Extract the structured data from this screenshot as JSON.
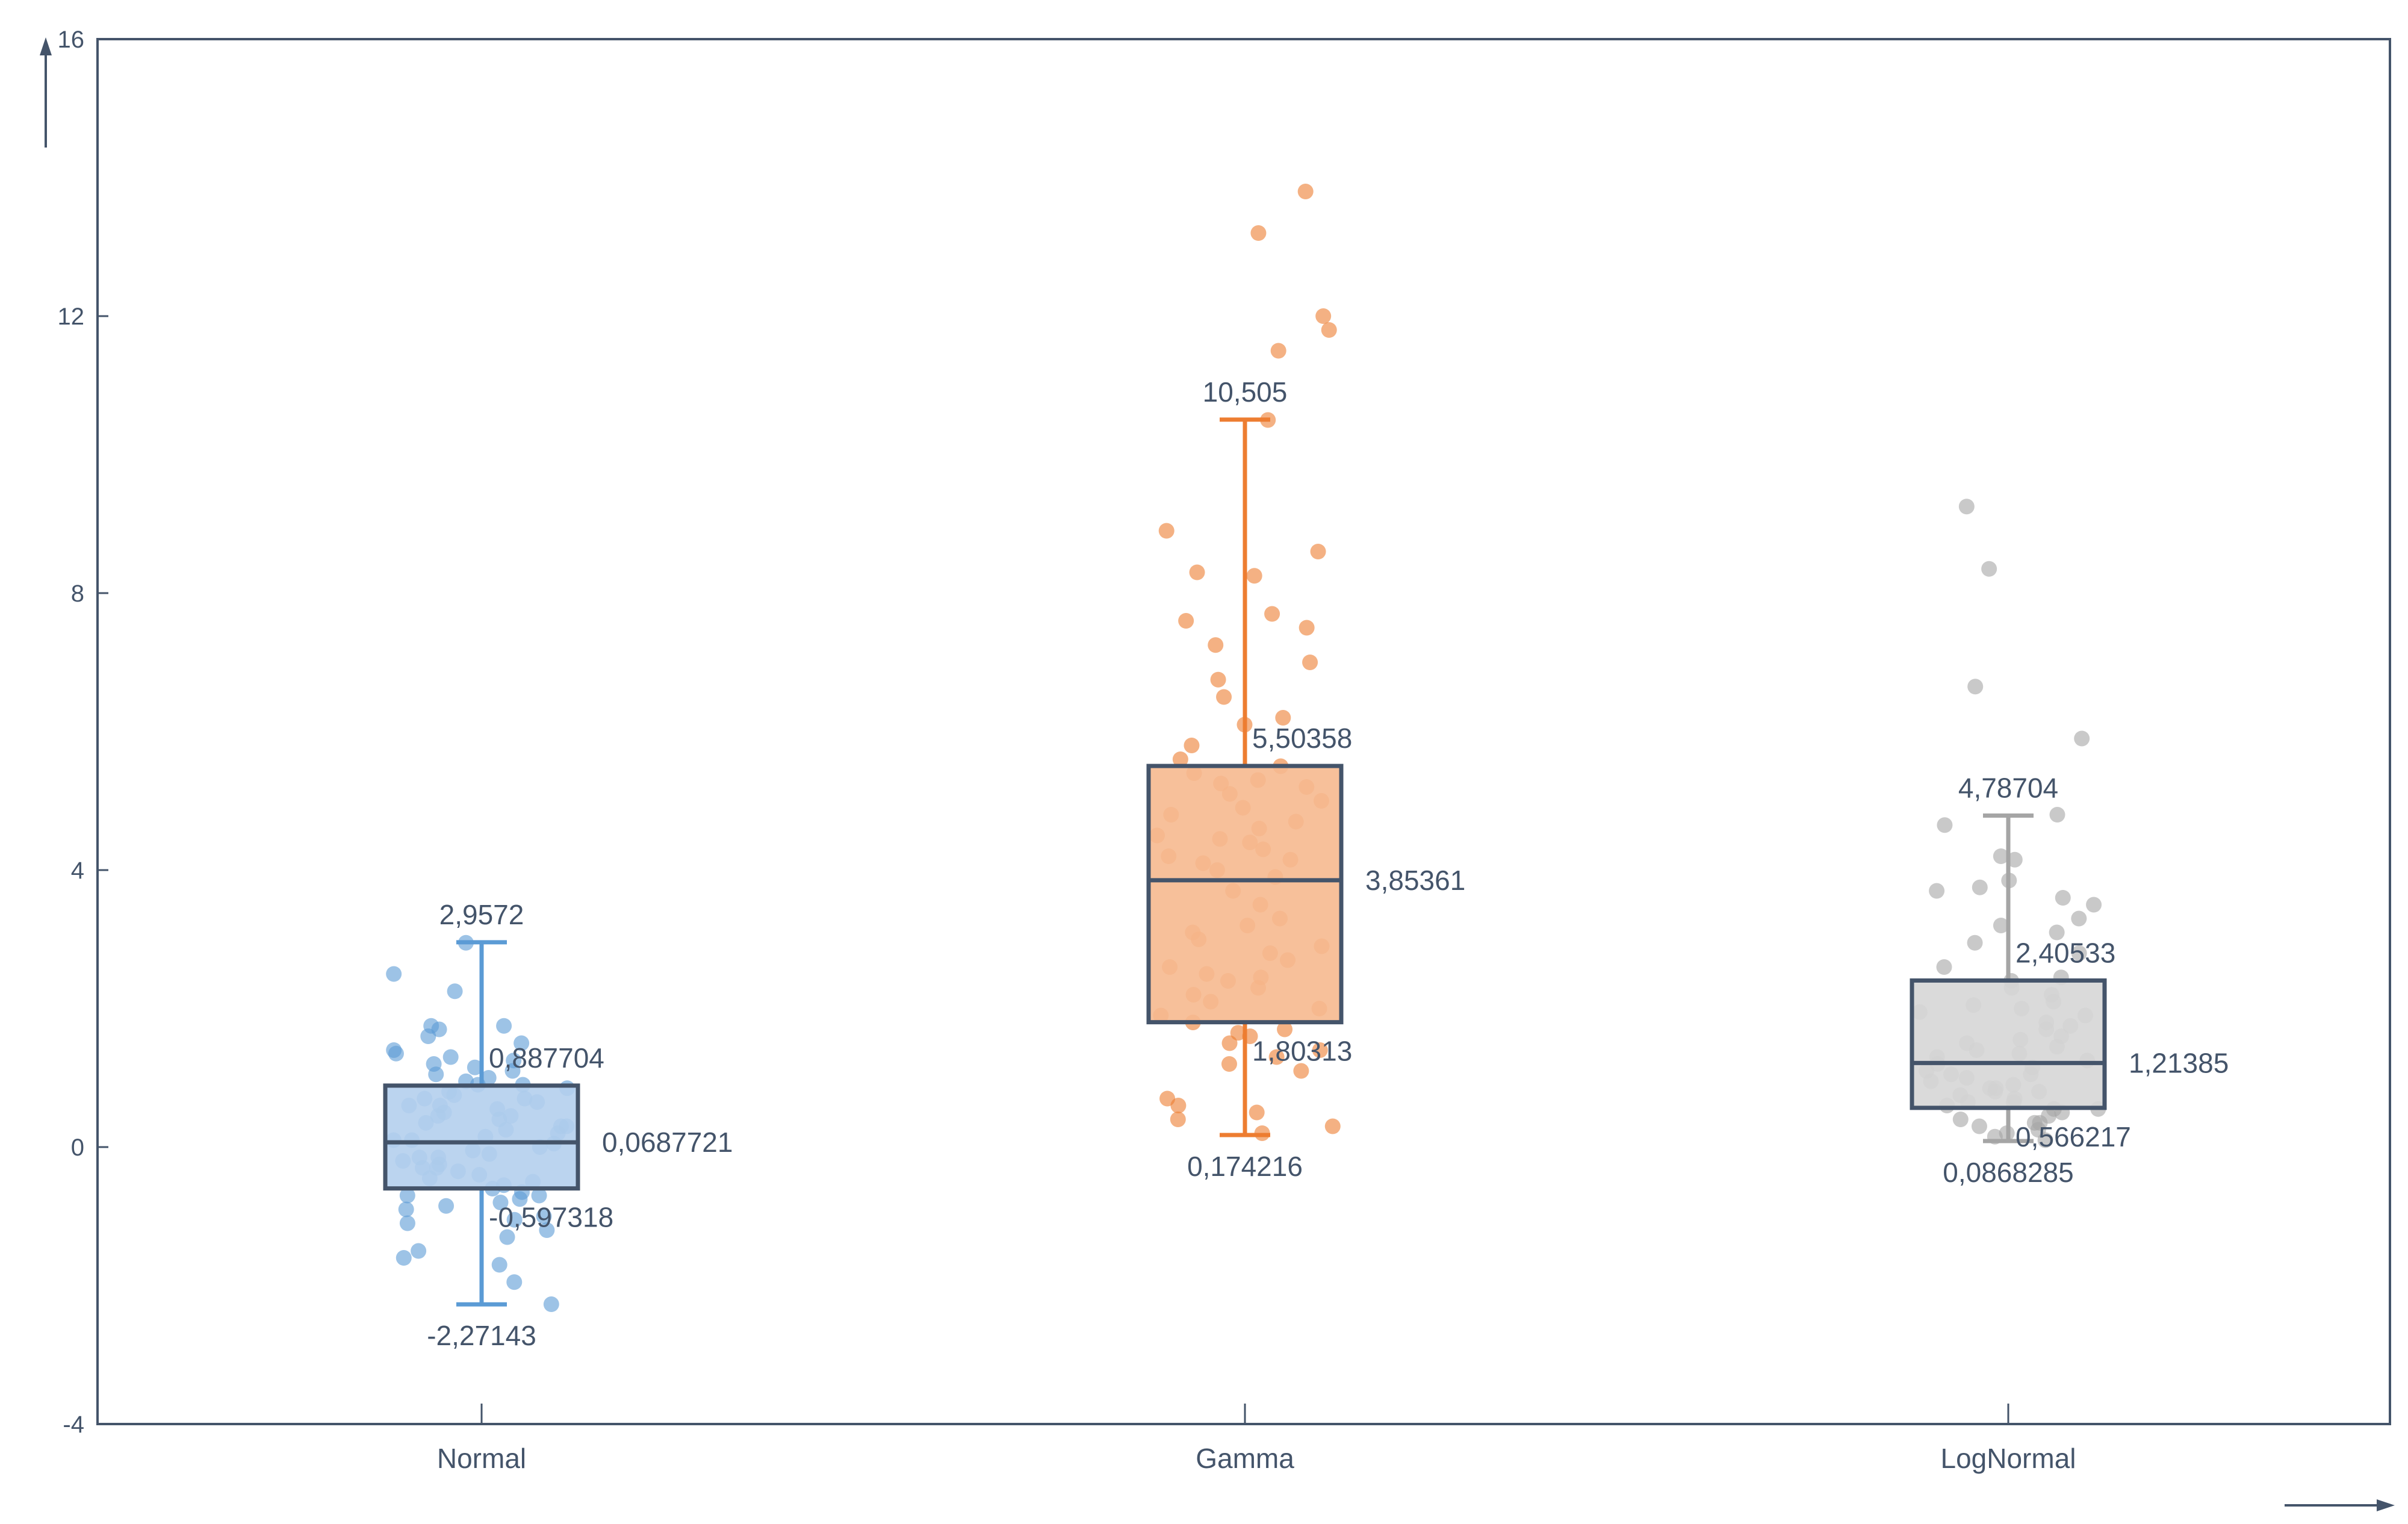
{
  "chart_data": {
    "type": "box",
    "title": "",
    "xlabel": "",
    "ylabel": "",
    "ylim": [
      -4,
      16
    ],
    "yticks": [
      -4,
      0,
      4,
      8,
      12,
      16
    ],
    "ytick_labels": [
      "-4",
      "0",
      "4",
      "8",
      "12",
      "16"
    ],
    "grid": false,
    "legend": "none",
    "categories": [
      "Normal",
      "Gamma",
      "LogNormal"
    ],
    "series": [
      {
        "category": "Normal",
        "color": "#5b9bd5",
        "fill": "#b4cfed",
        "whisker_high": 2.9572,
        "q3": 0.887704,
        "median": 0.0687721,
        "q1": -0.597318,
        "whisker_low": -2.27143,
        "labels": {
          "whisker_high": "2,9572",
          "q3": "0,887704",
          "median": "0,0687721",
          "q1": "-0,597318",
          "whisker_low": "-2,27143"
        },
        "points": [
          2.95,
          2.5,
          2.25,
          1.75,
          1.7,
          1.6,
          1.5,
          1.4,
          1.35,
          1.3,
          1.25,
          1.2,
          1.15,
          1.1,
          1.05,
          1.0,
          0.95,
          0.9,
          0.85,
          0.8,
          0.75,
          0.7,
          0.65,
          0.6,
          0.55,
          0.5,
          0.45,
          0.4,
          0.35,
          0.3,
          0.25,
          0.2,
          0.15,
          0.1,
          0.05,
          0.0,
          -0.05,
          -0.1,
          -0.15,
          -0.2,
          -0.25,
          -0.3,
          -0.35,
          -0.4,
          -0.45,
          -0.5,
          -0.55,
          -0.6,
          -0.65,
          -0.7,
          -0.75,
          -0.8,
          -0.85,
          -0.9,
          -1.0,
          -1.05,
          -1.1,
          -1.2,
          -1.3,
          -1.5,
          -1.6,
          -1.7,
          -1.95,
          -2.27,
          0.3,
          0.6,
          0.9,
          -0.3,
          -0.7,
          0.1,
          1.75,
          0.45,
          -0.15,
          0.7
        ]
      },
      {
        "category": "Gamma",
        "color": "#ed7d31",
        "fill": "#f6b98f",
        "whisker_high": 10.505,
        "q3": 5.50358,
        "median": 3.85361,
        "q1": 1.80313,
        "whisker_low": 0.174216,
        "labels": {
          "whisker_high": "10,505",
          "q3": "5,50358",
          "median": "3,85361",
          "q1": "1,80313",
          "whisker_low": "0,174216"
        },
        "points": [
          13.8,
          13.2,
          12.0,
          11.8,
          11.5,
          10.5,
          8.9,
          8.6,
          8.3,
          8.25,
          7.7,
          7.6,
          7.5,
          7.25,
          7.0,
          6.75,
          6.5,
          6.2,
          6.1,
          5.8,
          5.6,
          5.5,
          5.4,
          5.3,
          5.25,
          5.2,
          5.1,
          5.0,
          4.9,
          4.8,
          4.7,
          4.6,
          4.5,
          4.45,
          4.4,
          4.3,
          4.2,
          4.15,
          4.1,
          4.0,
          3.9,
          3.7,
          3.5,
          3.3,
          3.2,
          3.1,
          3.0,
          2.9,
          2.8,
          2.7,
          2.6,
          2.5,
          2.45,
          2.4,
          2.3,
          2.2,
          2.1,
          2.0,
          1.9,
          1.8,
          1.7,
          1.65,
          1.6,
          1.5,
          1.4,
          1.3,
          1.2,
          1.1,
          0.7,
          0.6,
          0.5,
          0.4,
          0.3,
          0.2
        ]
      },
      {
        "category": "LogNormal",
        "color": "#a5a5a5",
        "fill": "#d6d6d6",
        "whisker_high": 4.78704,
        "q3": 2.40533,
        "median": 1.21385,
        "q1": 0.566217,
        "whisker_low": 0.0868285,
        "labels": {
          "whisker_high": "4,78704",
          "q3": "2,40533",
          "median": "1,21385",
          "q1": "0,566217",
          "whisker_low": "0,0868285"
        },
        "points": [
          9.25,
          8.35,
          6.65,
          5.9,
          4.8,
          4.65,
          4.2,
          4.15,
          3.85,
          3.75,
          3.7,
          3.6,
          3.5,
          3.3,
          3.2,
          3.1,
          2.95,
          2.8,
          2.6,
          2.45,
          2.4,
          2.3,
          2.2,
          2.1,
          2.05,
          2.0,
          1.95,
          1.9,
          1.8,
          1.7,
          1.6,
          1.55,
          1.5,
          1.4,
          1.35,
          1.3,
          1.25,
          1.2,
          1.15,
          1.1,
          1.05,
          1.0,
          0.95,
          0.9,
          0.85,
          0.8,
          0.75,
          0.7,
          0.65,
          0.6,
          0.55,
          0.5,
          0.45,
          0.4,
          0.35,
          0.3,
          0.25,
          0.2,
          0.15,
          0.1,
          0.55,
          0.85,
          1.45,
          1.75,
          0.35,
          0.65,
          1.05,
          0.8
        ]
      }
    ]
  }
}
